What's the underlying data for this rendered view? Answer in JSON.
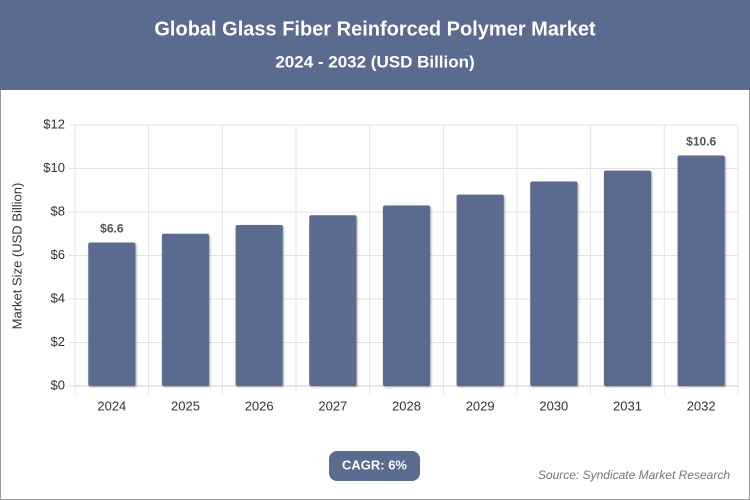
{
  "chart_data": {
    "type": "bar",
    "title": "Global Glass Fiber Reinforced Polymer Market",
    "subtitle": "2024 - 2032 (USD Billion)",
    "y_label": "Market Size (USD Billion)",
    "categories": [
      "2024",
      "2025",
      "2026",
      "2027",
      "2028",
      "2029",
      "2030",
      "2031",
      "2032"
    ],
    "values": [
      6.6,
      7.0,
      7.4,
      7.85,
      8.3,
      8.8,
      9.4,
      9.9,
      10.6
    ],
    "value_labels": [
      "$6.6",
      null,
      null,
      null,
      null,
      null,
      null,
      null,
      "$10.6"
    ],
    "color": "#5b6a8f",
    "ylim": [
      0,
      12
    ],
    "yticks": [
      {
        "value": 0,
        "label": "$0"
      },
      {
        "value": 2,
        "label": "$2"
      },
      {
        "value": 4,
        "label": "$4"
      },
      {
        "value": 6,
        "label": "$6"
      },
      {
        "value": 8,
        "label": "$8"
      },
      {
        "value": 10,
        "label": "$10"
      },
      {
        "value": 12,
        "label": "$12"
      }
    ],
    "grid": true,
    "cagr_label": "CAGR: 6%",
    "source": "Source: Syndicate Market Research"
  }
}
